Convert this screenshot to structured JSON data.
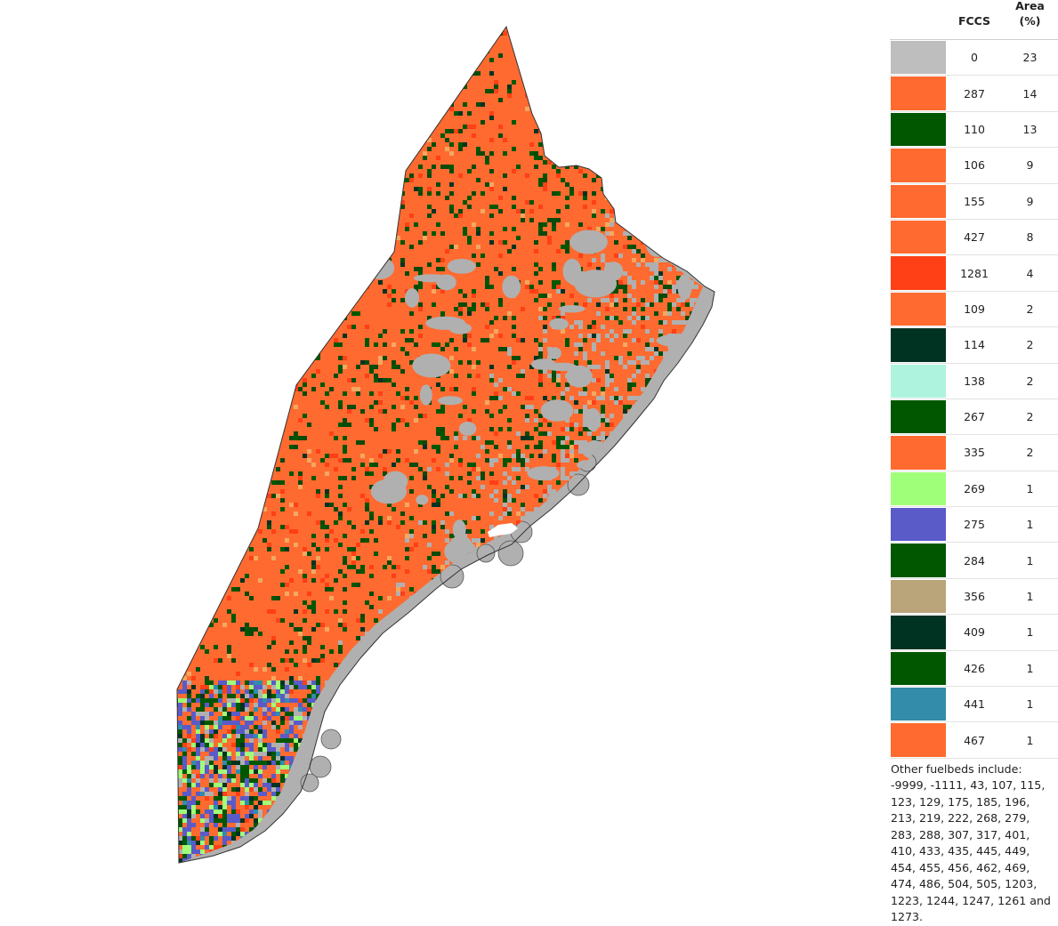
{
  "legend": {
    "header_fccs": "FCCS",
    "header_area_line1": "Area",
    "header_area_line2": "(%)",
    "rows": [
      {
        "code": "0",
        "area": "23",
        "color": "#bebebe"
      },
      {
        "code": "287",
        "area": "14",
        "color": "#ff6a30"
      },
      {
        "code": "110",
        "area": "13",
        "color": "#005700"
      },
      {
        "code": "106",
        "area": "9",
        "color": "#ff6a30"
      },
      {
        "code": "155",
        "area": "9",
        "color": "#ff6a30"
      },
      {
        "code": "427",
        "area": "8",
        "color": "#ff6a30"
      },
      {
        "code": "1281",
        "area": "4",
        "color": "#ff3f16"
      },
      {
        "code": "109",
        "area": "2",
        "color": "#ff6a30"
      },
      {
        "code": "114",
        "area": "2",
        "color": "#003322"
      },
      {
        "code": "138",
        "area": "2",
        "color": "#aef3dd"
      },
      {
        "code": "267",
        "area": "2",
        "color": "#005700"
      },
      {
        "code": "335",
        "area": "2",
        "color": "#ff6a30"
      },
      {
        "code": "269",
        "area": "1",
        "color": "#a0ff78"
      },
      {
        "code": "275",
        "area": "1",
        "color": "#5a5ac8"
      },
      {
        "code": "284",
        "area": "1",
        "color": "#005700"
      },
      {
        "code": "356",
        "area": "1",
        "color": "#baa47a"
      },
      {
        "code": "409",
        "area": "1",
        "color": "#003322"
      },
      {
        "code": "426",
        "area": "1",
        "color": "#005700"
      },
      {
        "code": "441",
        "area": "1",
        "color": "#328caa"
      },
      {
        "code": "467",
        "area": "1",
        "color": "#ff6a30"
      }
    ],
    "other_note": "Other fuelbeds include: -9999, -1111, 43, 107, 115, 123, 129, 175, 185, 196, 213, 219, 222, 268, 279, 283, 288, 307, 317, 401, 410, 433, 435, 445, 449, 454, 455, 456, 462, 469, 474, 486, 504, 505, 1203, 1223, 1244, 1247, 1261 and 1273."
  },
  "map": {
    "nodata_color": "#b0b0b0",
    "coast_color": "#b0b0b0",
    "outline_color": "#333333"
  }
}
